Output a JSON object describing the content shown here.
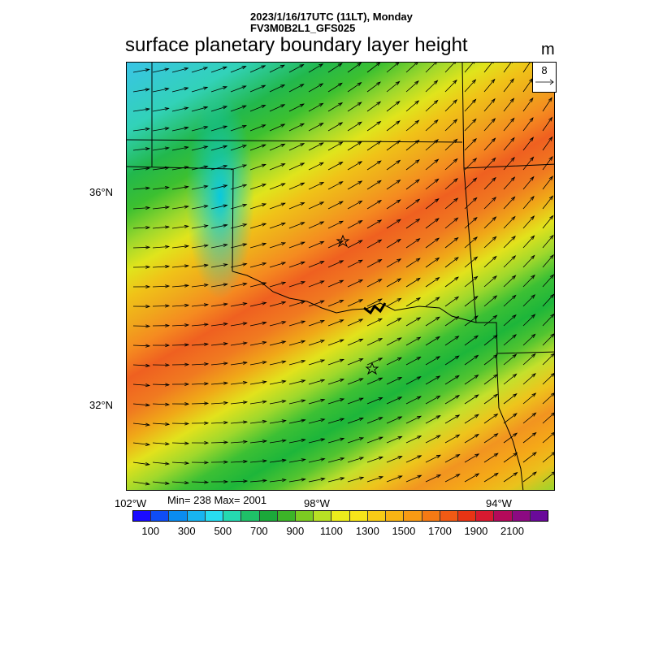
{
  "header": {
    "line1": "2023/1/16/17UTC (11LT), Monday",
    "line2": "FV3M0B2L1_GFS025"
  },
  "title": "surface planetary boundary layer height",
  "units": "m",
  "reference_vector": {
    "value": "8"
  },
  "axes": {
    "lat_labels": [
      "36°N",
      "32°N"
    ],
    "lon_labels": [
      "102°W",
      "98°W",
      "94°W"
    ]
  },
  "stats": {
    "text": "Min= 238 Max= 2001"
  },
  "colorbar": {
    "colors": [
      "#1a0bff",
      "#0f4df5",
      "#0a8cf0",
      "#18b4f0",
      "#28dcf0",
      "#25d9b0",
      "#1fc068",
      "#1ba83a",
      "#3cb428",
      "#7ccc22",
      "#b8e024",
      "#ecec1c",
      "#f7e41a",
      "#f8cc16",
      "#f8b414",
      "#f89a14",
      "#f57a14",
      "#f05a14",
      "#e83414",
      "#d81a30",
      "#b40a5a",
      "#8c0a82",
      "#6a0a9a"
    ],
    "labels": [
      "100",
      "300",
      "500",
      "700",
      "900",
      "1100",
      "1300",
      "1500",
      "1700",
      "1900",
      "2100"
    ]
  },
  "markers": [
    "star",
    "star"
  ]
}
